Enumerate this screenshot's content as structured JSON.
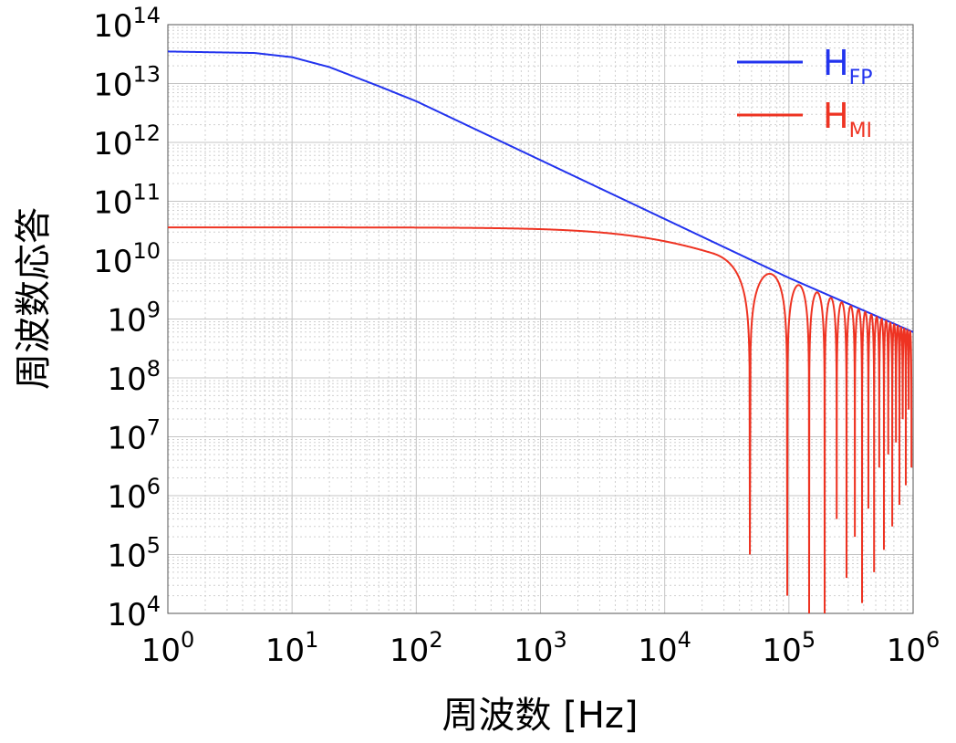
{
  "chart_data": {
    "type": "line",
    "xlabel": "周波数 [Hz]",
    "ylabel": "周波数応答",
    "x_scale": "log",
    "y_scale": "log",
    "xlim": [
      1,
      1000000
    ],
    "ylim": [
      10000,
      100000000000000
    ],
    "grid": true,
    "legend_position": "top-right",
    "x_ticks": [
      {
        "base": "10",
        "exp": "0"
      },
      {
        "base": "10",
        "exp": "1"
      },
      {
        "base": "10",
        "exp": "2"
      },
      {
        "base": "10",
        "exp": "3"
      },
      {
        "base": "10",
        "exp": "4"
      },
      {
        "base": "10",
        "exp": "5"
      },
      {
        "base": "10",
        "exp": "6"
      }
    ],
    "y_ticks": [
      {
        "base": "10",
        "exp": "4"
      },
      {
        "base": "10",
        "exp": "5"
      },
      {
        "base": "10",
        "exp": "6"
      },
      {
        "base": "10",
        "exp": "7"
      },
      {
        "base": "10",
        "exp": "8"
      },
      {
        "base": "10",
        "exp": "9"
      },
      {
        "base": "10",
        "exp": "10"
      },
      {
        "base": "10",
        "exp": "11"
      },
      {
        "base": "10",
        "exp": "12"
      },
      {
        "base": "10",
        "exp": "13"
      },
      {
        "base": "10",
        "exp": "14"
      }
    ],
    "series": [
      {
        "name": "H",
        "name_sub": "FP",
        "color": "#2233ee",
        "points": [
          [
            1,
            35000000000000
          ],
          [
            5,
            33000000000000
          ],
          [
            10,
            28000000000000
          ],
          [
            20,
            19000000000000
          ],
          [
            50,
            9000000000000
          ],
          [
            100,
            5000000000000
          ],
          [
            1000,
            500000000000
          ],
          [
            10000,
            50000000000
          ],
          [
            100000,
            5000000000
          ],
          [
            1000000,
            600000000
          ]
        ]
      },
      {
        "name": "H",
        "name_sub": "MI",
        "color": "#ee3322",
        "plateau": 36000000000,
        "fsr": 48500,
        "envelope": "H_FP",
        "notch_minima": [
          [
            48500,
            100000
          ],
          [
            97000,
            20000
          ],
          [
            145500,
            4000
          ],
          [
            194000,
            10000
          ],
          [
            242500,
            400000
          ],
          [
            291000,
            40000
          ],
          [
            339500,
            200000
          ],
          [
            388000,
            15000
          ],
          [
            436500,
            600000
          ],
          [
            485000,
            50000
          ],
          [
            533500,
            3000000
          ],
          [
            582000,
            120000
          ],
          [
            630500,
            5000000
          ],
          [
            679000,
            300000
          ],
          [
            727500,
            8000000
          ],
          [
            776000,
            700000
          ],
          [
            824500,
            20000000
          ],
          [
            873000,
            1500000
          ],
          [
            921500,
            30000000
          ],
          [
            970000,
            3000000
          ]
        ]
      }
    ]
  }
}
